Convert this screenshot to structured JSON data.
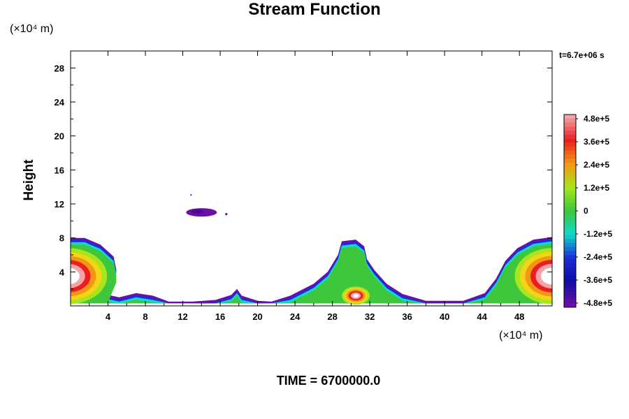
{
  "chart_data": {
    "type": "heatmap",
    "title": "Stream Function",
    "ylabel": "Height",
    "x_unit": "(×10⁴ m)",
    "y_unit": "(×10⁴ m)",
    "time_stamp": "t=6.7e+06 s",
    "footer": "TIME = 6700000.0",
    "xlim": [
      0,
      51.5
    ],
    "ylim": [
      0,
      30
    ],
    "x_ticks": [
      "4",
      "8",
      "12",
      "16",
      "20",
      "24",
      "28",
      "32",
      "36",
      "40",
      "44",
      "48"
    ],
    "y_ticks": [
      "4",
      "8",
      "12",
      "16",
      "20",
      "24",
      "28"
    ],
    "colorbar": {
      "range": [
        -480000,
        480000
      ],
      "labels": [
        "4.8e+5",
        "3.6e+5",
        "2.4e+5",
        "1.2e+5",
        "0",
        "-1.2e+5",
        "-2.4e+5",
        "-3.6e+5",
        "-4.8e+5"
      ],
      "colors": [
        "#f4a3a8",
        "#ea1e22",
        "#f39613",
        "#a8e61b",
        "#3ec63c",
        "#12d8c8",
        "#1a2dd8",
        "#0d0da0",
        "#6a0fa8"
      ]
    },
    "features": [
      {
        "name": "left-boundary-cell",
        "x": 1.5,
        "y": 3.5
      },
      {
        "name": "central-cell",
        "x": 30.5,
        "y": 1.2
      },
      {
        "name": "right-boundary-cell",
        "x": 50,
        "y": 3.5
      },
      {
        "name": "upper-negative-patch",
        "x": 14,
        "y": 11
      }
    ]
  }
}
